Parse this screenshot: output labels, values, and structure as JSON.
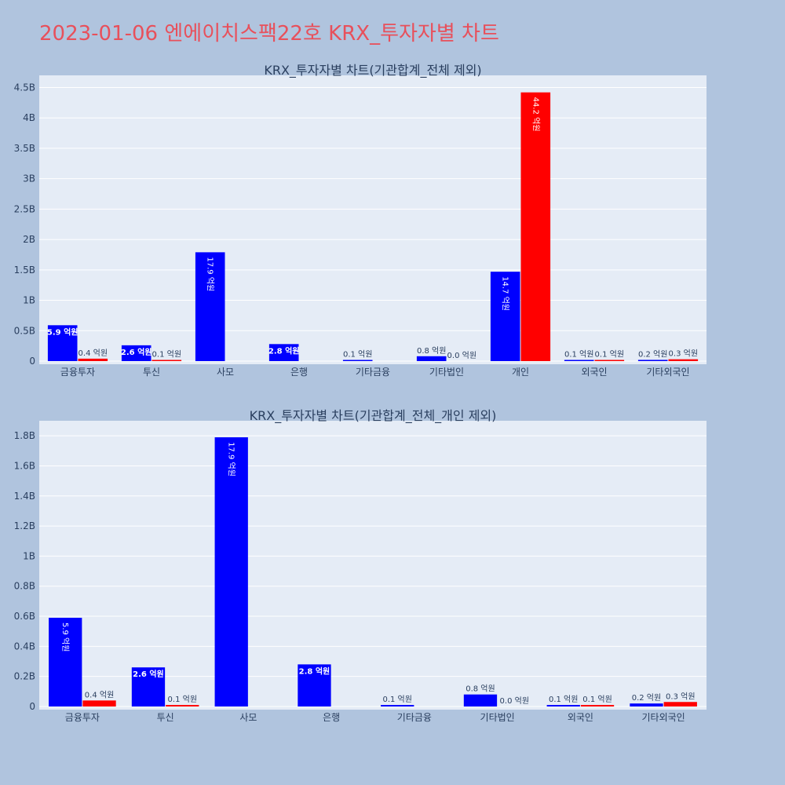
{
  "page": {
    "title": "2023-01-06 엔에이치스팩22호 KRX_투자자별 차트"
  },
  "colors": {
    "background": "#b0c4de",
    "plot_bg": "#e5ecf6",
    "buy": "#0000ff",
    "sell": "#ff0000",
    "title": "#e8505b"
  },
  "chart_data": [
    {
      "type": "bar",
      "title": "KRX_투자자별 차트(기관합계_전체 제외)",
      "categories": [
        "금융투자",
        "투신",
        "사모",
        "은행",
        "기타금융",
        "기타법인",
        "개인",
        "외국인",
        "기타외국인"
      ],
      "ylim": [
        0,
        4700000000
      ],
      "yticks": [
        0,
        500000000,
        1000000000,
        1500000000,
        2000000000,
        2500000000,
        3000000000,
        3500000000,
        4000000000,
        4500000000
      ],
      "ytick_labels": [
        "0",
        "0.5B",
        "1B",
        "1.5B",
        "2B",
        "2.5B",
        "3B",
        "3.5B",
        "4B",
        "4.5B"
      ],
      "grid": true,
      "series": [
        {
          "color": "#0000ff",
          "values": [
            590000000,
            260000000,
            1790000000,
            280000000,
            10000000,
            80000000,
            1470000000,
            10000000,
            20000000
          ],
          "labels": [
            "5.9 억원",
            "2.6 억원",
            "17.9 억원",
            "2.8 억원",
            "0.1 억원",
            "0.8 억원",
            "14.7 억원",
            "0.1 억원",
            "0.2 억원"
          ]
        },
        {
          "color": "#ff0000",
          "values": [
            40000000,
            10000000,
            0,
            0,
            0,
            0,
            4420000000,
            10000000,
            30000000
          ],
          "labels": [
            "0.4 억원",
            "0.1 억원",
            "",
            "",
            "",
            "0.0 억원",
            "44.2 억원",
            "0.1 억원",
            "0.3 억원"
          ]
        }
      ]
    },
    {
      "type": "bar",
      "title": "KRX_투자자별 차트(기관합계_전체_개인 제외)",
      "categories": [
        "금융투자",
        "투신",
        "사모",
        "은행",
        "기타금융",
        "기타법인",
        "외국인",
        "기타외국인"
      ],
      "ylim": [
        0,
        1900000000
      ],
      "yticks": [
        0,
        200000000,
        400000000,
        600000000,
        800000000,
        1000000000,
        1200000000,
        1400000000,
        1600000000,
        1800000000
      ],
      "ytick_labels": [
        "0",
        "0.2B",
        "0.4B",
        "0.6B",
        "0.8B",
        "1B",
        "1.2B",
        "1.4B",
        "1.6B",
        "1.8B"
      ],
      "grid": true,
      "series": [
        {
          "color": "#0000ff",
          "values": [
            590000000,
            260000000,
            1790000000,
            280000000,
            10000000,
            80000000,
            10000000,
            20000000
          ],
          "labels": [
            "5.9 억원",
            "2.6 억원",
            "17.9 억원",
            "2.8 억원",
            "0.1 억원",
            "0.8 억원",
            "0.1 억원",
            "0.2 억원"
          ]
        },
        {
          "color": "#ff0000",
          "values": [
            40000000,
            10000000,
            0,
            0,
            0,
            0,
            10000000,
            30000000
          ],
          "labels": [
            "0.4 억원",
            "0.1 억원",
            "",
            "",
            "",
            "0.0 억원",
            "0.1 억원",
            "0.3 억원"
          ]
        }
      ]
    }
  ]
}
